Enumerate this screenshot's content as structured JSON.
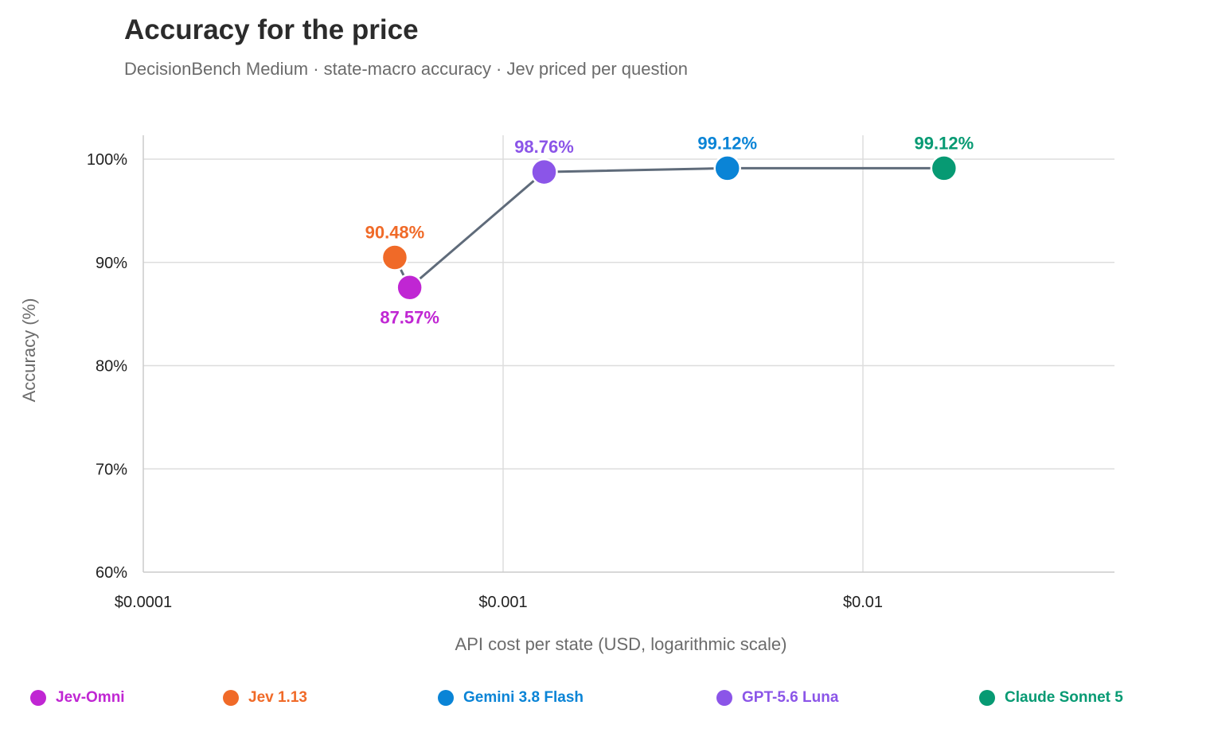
{
  "header": {
    "title": "Accuracy for the price",
    "subtitle": "DecisionBench Medium · state-macro accuracy · Jev priced per question"
  },
  "chart_data": {
    "type": "scatter",
    "xlabel": "API cost per state (USD, logarithmic scale)",
    "ylabel": "Accuracy (%)",
    "x_scale": "log",
    "xlim": [
      0.0001,
      0.05
    ],
    "ylim": [
      60,
      102
    ],
    "x_ticks": [
      {
        "value": 0.0001,
        "label": "$0.0001"
      },
      {
        "value": 0.001,
        "label": "$0.001"
      },
      {
        "value": 0.01,
        "label": "$0.01"
      }
    ],
    "y_ticks": [
      {
        "value": 100,
        "label": "100%"
      },
      {
        "value": 90,
        "label": "90%"
      },
      {
        "value": 80,
        "label": "80%"
      },
      {
        "value": 70,
        "label": "70%"
      },
      {
        "value": 60,
        "label": "60%"
      }
    ],
    "grid": true,
    "legend_position": "bottom",
    "frontier_order": [
      "Jev 1.13",
      "Jev-Omni",
      "GPT-5.6 Luna",
      "Gemini 3.8 Flash",
      "Claude Sonnet 5"
    ],
    "frontier_color": "#5f6b7a",
    "series": [
      {
        "name": "Jev-Omni",
        "x": 0.00055,
        "y": 87.57,
        "label": "87.57%",
        "color": "#c026d3",
        "label_pos": "below"
      },
      {
        "name": "Jev 1.13",
        "x": 0.0005,
        "y": 90.48,
        "label": "90.48%",
        "color": "#f06a28",
        "label_pos": "above"
      },
      {
        "name": "Gemini 3.8 Flash",
        "x": 0.0042,
        "y": 99.12,
        "label": "99.12%",
        "color": "#0a84d6",
        "label_pos": "above"
      },
      {
        "name": "GPT-5.6 Luna",
        "x": 0.0013,
        "y": 98.76,
        "label": "98.76%",
        "color": "#8b55e8",
        "label_pos": "above"
      },
      {
        "name": "Claude Sonnet 5",
        "x": 0.0168,
        "y": 99.12,
        "label": "99.12%",
        "color": "#079a73",
        "label_pos": "above"
      }
    ]
  }
}
